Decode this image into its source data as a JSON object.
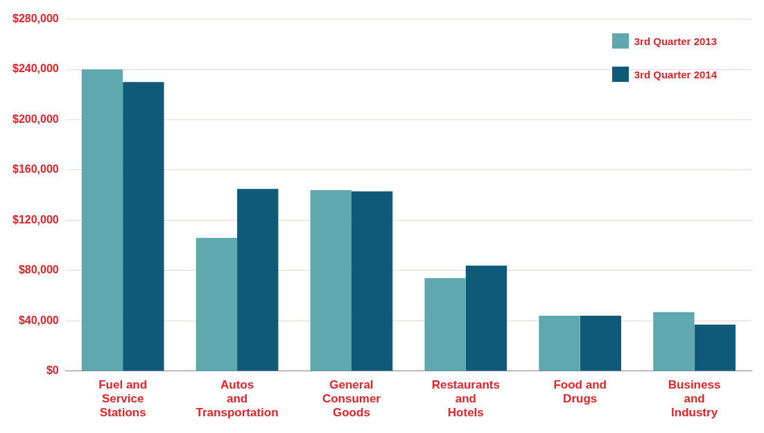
{
  "chart_data": {
    "type": "bar",
    "categories": [
      "Fuel and Service Stations",
      "Autos and Transportation",
      "General Consumer Goods",
      "Restaurants and Hotels",
      "Food and Drugs",
      "Business and Industry"
    ],
    "series": [
      {
        "name": "3rd Quarter 2013",
        "color": "#5fa8ad",
        "values": [
          240000,
          106000,
          144000,
          74000,
          44000,
          47000
        ]
      },
      {
        "name": "3rd Quarter 2014",
        "color": "#0e5a78",
        "values": [
          230000,
          145000,
          143000,
          84000,
          44000,
          37000
        ]
      }
    ],
    "ylim": [
      0,
      280000
    ],
    "yticks": [
      {
        "value": 0,
        "label": "$0"
      },
      {
        "value": 40000,
        "label": "$40,000"
      },
      {
        "value": 80000,
        "label": "$80,000"
      },
      {
        "value": 120000,
        "label": "$120,000"
      },
      {
        "value": 160000,
        "label": "$160,000"
      },
      {
        "value": 200000,
        "label": "$200,000"
      },
      {
        "value": 240000,
        "label": "$240,000"
      },
      {
        "value": 280000,
        "label": "$280,000"
      }
    ],
    "grid": "y",
    "legend": "top right"
  }
}
